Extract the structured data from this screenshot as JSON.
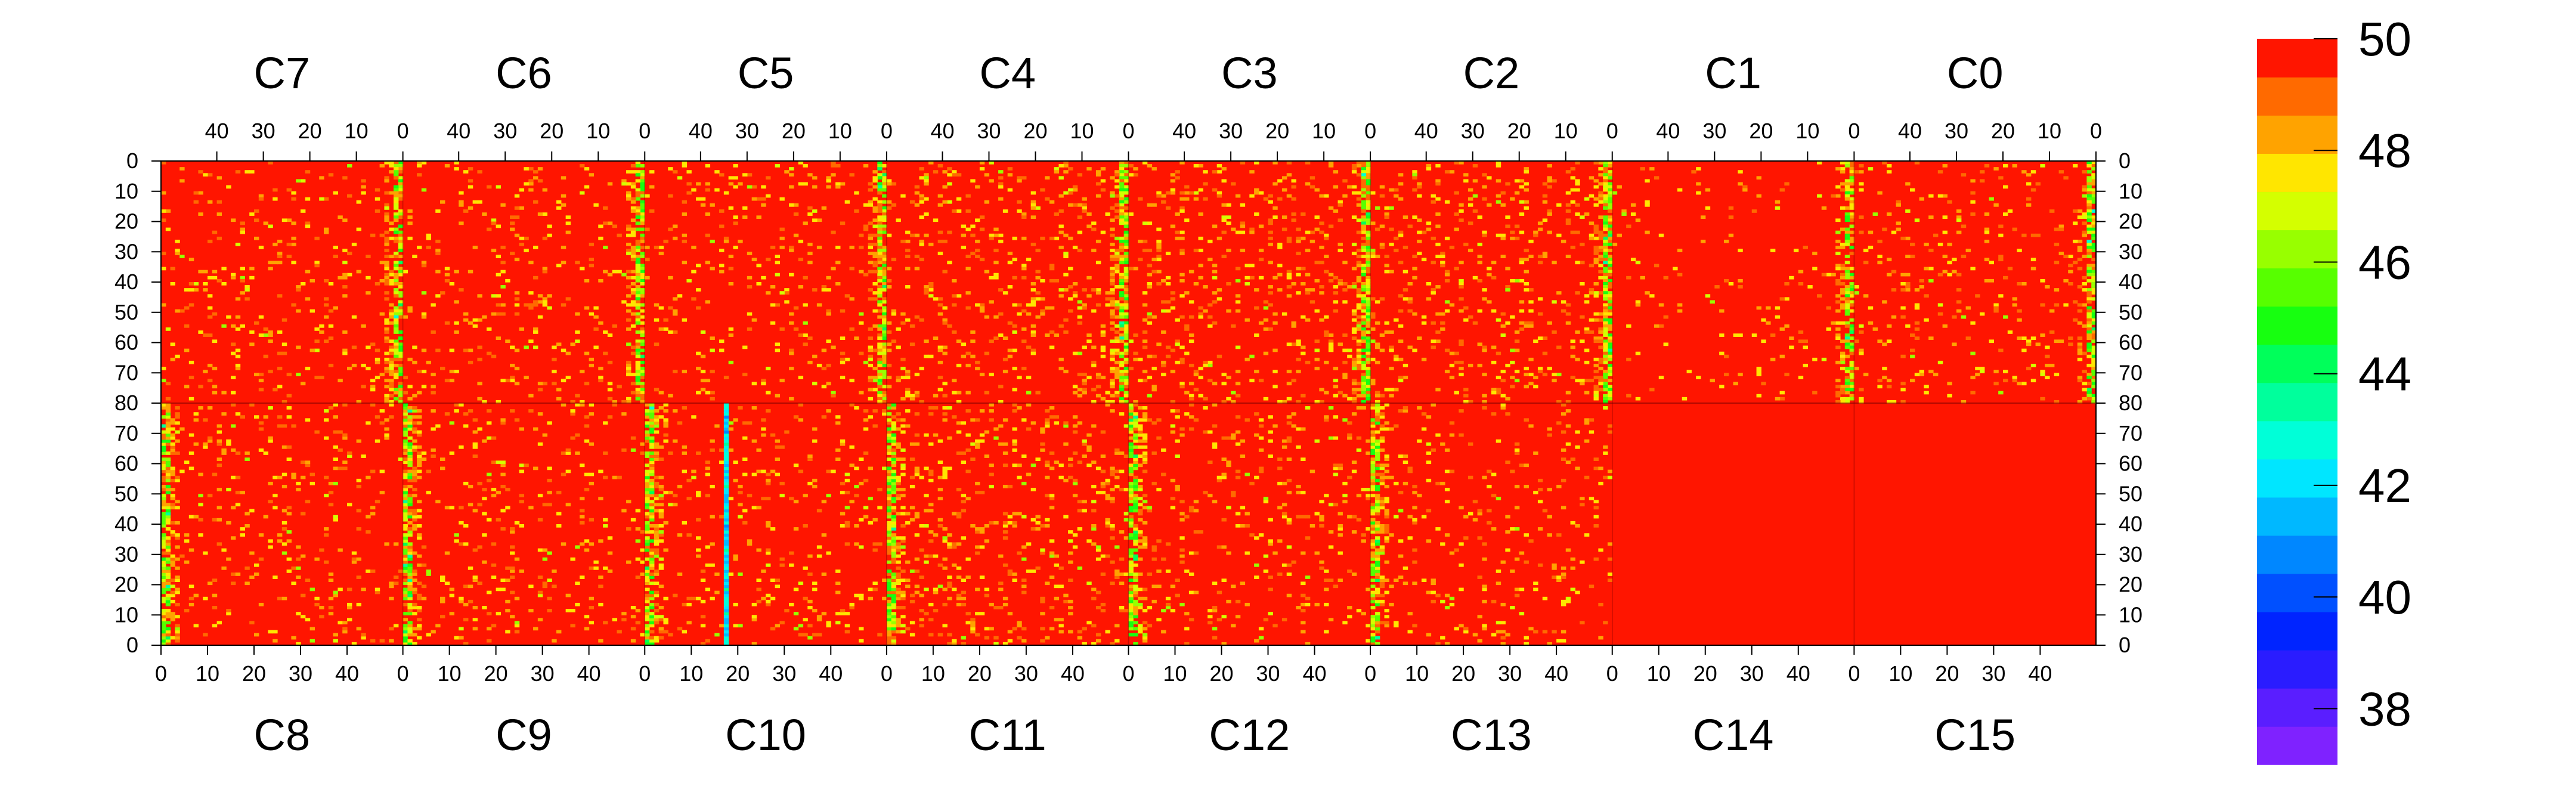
{
  "chart_data": {
    "type": "heatmap",
    "title": "",
    "top_row": {
      "chips": [
        "C7",
        "C6",
        "C5",
        "C4",
        "C3",
        "C2",
        "C1",
        "C0"
      ],
      "x_ticks": [
        "40",
        "30",
        "20",
        "10",
        "0"
      ],
      "x_tick_values": [
        40,
        30,
        20,
        10,
        0
      ],
      "x_direction": "decreasing-left-to-right",
      "x_range": [
        0,
        52
      ],
      "y_ticks": [
        "0",
        "10",
        "20",
        "30",
        "40",
        "50",
        "60",
        "70",
        "80"
      ],
      "y_tick_values": [
        0,
        10,
        20,
        30,
        40,
        50,
        60,
        70,
        80
      ],
      "y_direction": "increasing-downward",
      "y_range": [
        0,
        80
      ]
    },
    "bottom_row": {
      "chips": [
        "C8",
        "C9",
        "C10",
        "C11",
        "C12",
        "C13",
        "C14",
        "C15"
      ],
      "x_ticks": [
        "0",
        "10",
        "20",
        "30",
        "40"
      ],
      "x_tick_values": [
        0,
        10,
        20,
        30,
        40
      ],
      "x_direction": "increasing-left-to-right",
      "x_range": [
        0,
        52
      ],
      "y_ticks": [
        "80",
        "70",
        "60",
        "50",
        "40",
        "30",
        "20",
        "10",
        "0"
      ],
      "y_tick_values": [
        80,
        70,
        60,
        50,
        40,
        30,
        20,
        10,
        0
      ],
      "y_direction": "decreasing-downward",
      "y_range": [
        0,
        80
      ]
    },
    "z_range": [
      37,
      50
    ],
    "colorbar": {
      "tick_labels": [
        "50",
        "48",
        "46",
        "44",
        "42",
        "40",
        "38"
      ],
      "tick_values": [
        50,
        48,
        46,
        44,
        42,
        40,
        38
      ],
      "colors": [
        "#7f22ff",
        "#5a1eff",
        "#2a1cff",
        "#0024ff",
        "#0050ff",
        "#0087ff",
        "#00b8ff",
        "#00e6ff",
        "#00ffd8",
        "#00ff9c",
        "#00ff5a",
        "#17ff10",
        "#57ff00",
        "#98ff00",
        "#d4ff00",
        "#ffe600",
        "#ffa300",
        "#ff6a00",
        "#ff1500"
      ],
      "placement": "right"
    },
    "chip_profiles": {
      "C7": {
        "low_band": "right-edge",
        "level": "medium"
      },
      "C6": {
        "low_band": "right-edge",
        "level": "medium"
      },
      "C5": {
        "low_band": "right-edge",
        "level": "medium"
      },
      "C4": {
        "low_band": "right-edge",
        "level": "high"
      },
      "C3": {
        "low_band": "right-edge",
        "level": "high"
      },
      "C2": {
        "low_band": "right-edge",
        "level": "high"
      },
      "C1": {
        "low_band": "right-edge",
        "level": "low"
      },
      "C0": {
        "low_band": "right-edge",
        "level": "medium"
      },
      "C8": {
        "low_band": "right-edge",
        "level": "medium"
      },
      "C9": {
        "low_band": "right-edge",
        "level": "medium"
      },
      "C10": {
        "low_band": "right-edge",
        "level": "medium",
        "dead_column": 17
      },
      "C11": {
        "low_band": "right-edge",
        "level": "high"
      },
      "C12": {
        "low_band": "right-edge",
        "level": "medium"
      },
      "C13": {
        "low_band": "right-edge",
        "level": "medium"
      },
      "C14": {
        "low_band": "none",
        "level": "very-low"
      },
      "C15": {
        "low_band": "none",
        "level": "very-low"
      }
    }
  }
}
